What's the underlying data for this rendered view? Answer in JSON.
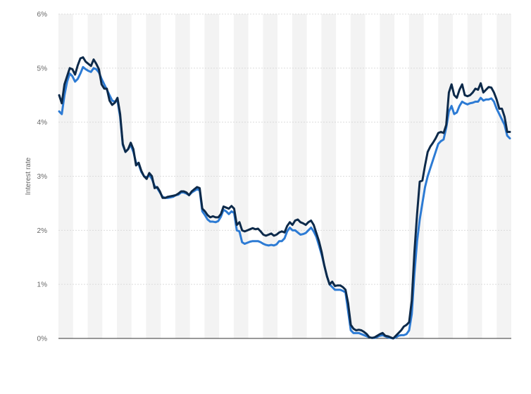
{
  "chart_data": {
    "type": "line",
    "title": "",
    "xlabel": "",
    "ylabel": "Interest rate",
    "ylim": [
      0,
      6
    ],
    "yticks": [
      "0%",
      "1%",
      "2%",
      "3%",
      "4%",
      "5%",
      "6%"
    ],
    "x_tick_labels_visible": false,
    "grid": "horizontal dashed lines, alternating vertical shading",
    "legend": "none",
    "series": [
      {
        "color": "#0d2a4a",
        "values": [
          4.5,
          4.35,
          4.7,
          4.85,
          5.0,
          4.98,
          4.88,
          5.05,
          5.18,
          5.2,
          5.12,
          5.08,
          5.04,
          5.16,
          5.08,
          4.98,
          4.7,
          4.62,
          4.62,
          4.4,
          4.32,
          4.36,
          4.45,
          4.15,
          3.6,
          3.45,
          3.5,
          3.62,
          3.5,
          3.2,
          3.25,
          3.1,
          3.0,
          2.95,
          3.06,
          3.0,
          2.78,
          2.8,
          2.72,
          2.6,
          2.6,
          2.62,
          2.63,
          2.64,
          2.65,
          2.68,
          2.72,
          2.72,
          2.7,
          2.65,
          2.72,
          2.76,
          2.8,
          2.78,
          2.4,
          2.35,
          2.28,
          2.24,
          2.26,
          2.24,
          2.24,
          2.3,
          2.44,
          2.42,
          2.4,
          2.45,
          2.4,
          2.1,
          2.15,
          2.0,
          1.98,
          2.0,
          2.02,
          2.04,
          2.02,
          2.03,
          1.98,
          1.92,
          1.9,
          1.92,
          1.94,
          1.9,
          1.92,
          1.96,
          1.98,
          1.96,
          2.08,
          2.15,
          2.1,
          2.18,
          2.2,
          2.15,
          2.13,
          2.1,
          2.15,
          2.18,
          2.1,
          1.95,
          1.8,
          1.6,
          1.35,
          1.15,
          1.0,
          1.05,
          0.97,
          0.98,
          0.98,
          0.95,
          0.9,
          0.65,
          0.25,
          0.18,
          0.15,
          0.16,
          0.15,
          0.12,
          0.08,
          0.02,
          0.01,
          0.02,
          0.05,
          0.08,
          0.1,
          0.05,
          0.04,
          0.02,
          0.0,
          0.05,
          0.1,
          0.15,
          0.22,
          0.25,
          0.3,
          0.7,
          1.6,
          2.3,
          2.9,
          2.92,
          3.2,
          3.45,
          3.55,
          3.62,
          3.7,
          3.8,
          3.82,
          3.8,
          3.95,
          4.55,
          4.7,
          4.5,
          4.45,
          4.6,
          4.7,
          4.5,
          4.48,
          4.5,
          4.55,
          4.62,
          4.6,
          4.72,
          4.55,
          4.6,
          4.65,
          4.64,
          4.55,
          4.42,
          4.25,
          4.25,
          4.1,
          3.82,
          3.82
        ]
      },
      {
        "color": "#2d7bd4",
        "values": [
          4.2,
          4.15,
          4.5,
          4.75,
          4.9,
          4.85,
          4.75,
          4.8,
          4.9,
          5.02,
          4.98,
          4.95,
          4.93,
          5.0,
          4.98,
          4.92,
          4.8,
          4.7,
          4.6,
          4.5,
          4.4,
          4.38,
          4.4,
          4.1,
          3.58,
          3.45,
          3.5,
          3.58,
          3.45,
          3.25,
          3.22,
          3.08,
          3.0,
          2.98,
          3.02,
          2.95,
          2.82,
          2.78,
          2.7,
          2.62,
          2.6,
          2.6,
          2.61,
          2.62,
          2.65,
          2.66,
          2.7,
          2.7,
          2.68,
          2.65,
          2.7,
          2.73,
          2.76,
          2.74,
          2.35,
          2.28,
          2.2,
          2.16,
          2.16,
          2.15,
          2.17,
          2.25,
          2.38,
          2.35,
          2.3,
          2.35,
          2.32,
          2.0,
          1.98,
          1.78,
          1.75,
          1.77,
          1.79,
          1.8,
          1.8,
          1.8,
          1.78,
          1.75,
          1.73,
          1.72,
          1.73,
          1.72,
          1.74,
          1.8,
          1.8,
          1.85,
          1.98,
          2.05,
          2.0,
          2.0,
          1.96,
          1.92,
          1.93,
          1.95,
          2.0,
          2.05,
          1.98,
          1.88,
          1.72,
          1.55,
          1.35,
          1.15,
          1.0,
          0.95,
          0.9,
          0.9,
          0.9,
          0.88,
          0.85,
          0.5,
          0.15,
          0.1,
          0.1,
          0.1,
          0.08,
          0.06,
          0.04,
          0.02,
          0.01,
          0.01,
          0.03,
          0.05,
          0.06,
          0.04,
          0.02,
          0.01,
          0.0,
          0.02,
          0.05,
          0.06,
          0.06,
          0.08,
          0.15,
          0.45,
          1.2,
          1.8,
          2.2,
          2.5,
          2.8,
          3.0,
          3.15,
          3.3,
          3.45,
          3.6,
          3.65,
          3.68,
          3.9,
          4.2,
          4.3,
          4.15,
          4.18,
          4.3,
          4.38,
          4.35,
          4.33,
          4.35,
          4.36,
          4.38,
          4.38,
          4.45,
          4.4,
          4.42,
          4.42,
          4.44,
          4.38,
          4.25,
          4.15,
          4.05,
          3.95,
          3.75,
          3.7
        ]
      }
    ]
  }
}
